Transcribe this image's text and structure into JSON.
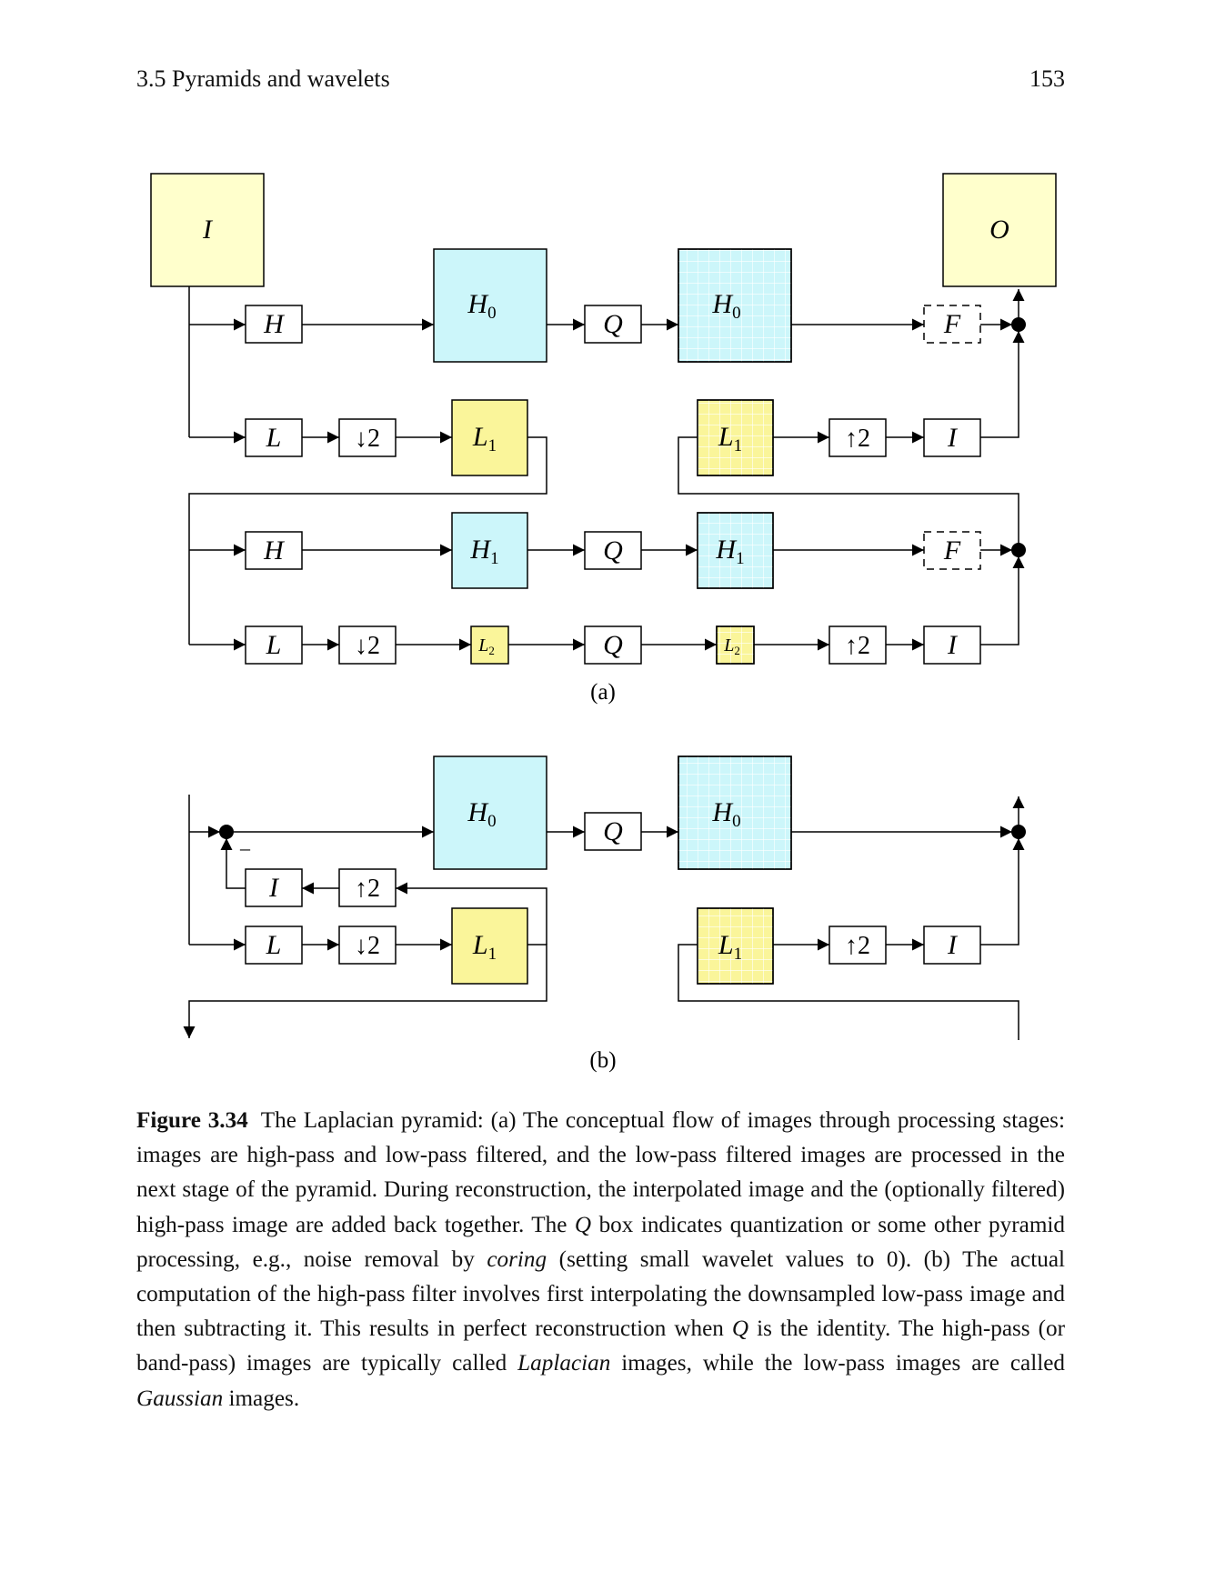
{
  "header": {
    "running_head": "3.5 Pyramids and wavelets",
    "page_number": "153"
  },
  "figure": {
    "panel_a_label": "(a)",
    "panel_b_label": "(b)",
    "input_image": "I",
    "output_image": "O",
    "high_pass_filter": "H",
    "low_pass_filter": "L",
    "downsample": "↓2",
    "upsample": "↑2",
    "quantize": "Q",
    "high_pass_filtered": "F",
    "interpolate": "I",
    "high_pass_image": "H",
    "low_pass_image": "L",
    "subscript_0": "0",
    "subscript_1": "1",
    "subscript_2": "2",
    "subtract_sign": "–",
    "colors": {
      "input_output": "#FFFFCC",
      "high_pass": "#CCF6FA",
      "low_pass": "#FAF59A",
      "grid_line": "#FFFFFF"
    }
  },
  "caption": {
    "label": "Figure 3.34",
    "part1": "The Laplacian pyramid: (a) The conceptual flow of images through processing stages: images are high-pass and low-pass filtered, and the low-pass filtered images are processed in the next stage of the pyramid. During reconstruction, the interpolated image and the (optionally filtered) high-pass image are added back together. The ",
    "q1": "Q",
    "part2": " box indicates quantization or some other pyramid processing, e.g., noise removal by ",
    "coring": "coring",
    "part3": " (setting small wavelet values to 0). (b) The actual computation of the high-pass filter involves first interpolating the downsampled low-pass image and then subtracting it. This results in perfect reconstruction when ",
    "q2": "Q",
    "part4": " is the identity. The high-pass (or band-pass) images are typically called ",
    "laplacian": "Laplacian",
    "part5": " images, while the low-pass images are called ",
    "gaussian": "Gaussian",
    "part6": " images."
  }
}
